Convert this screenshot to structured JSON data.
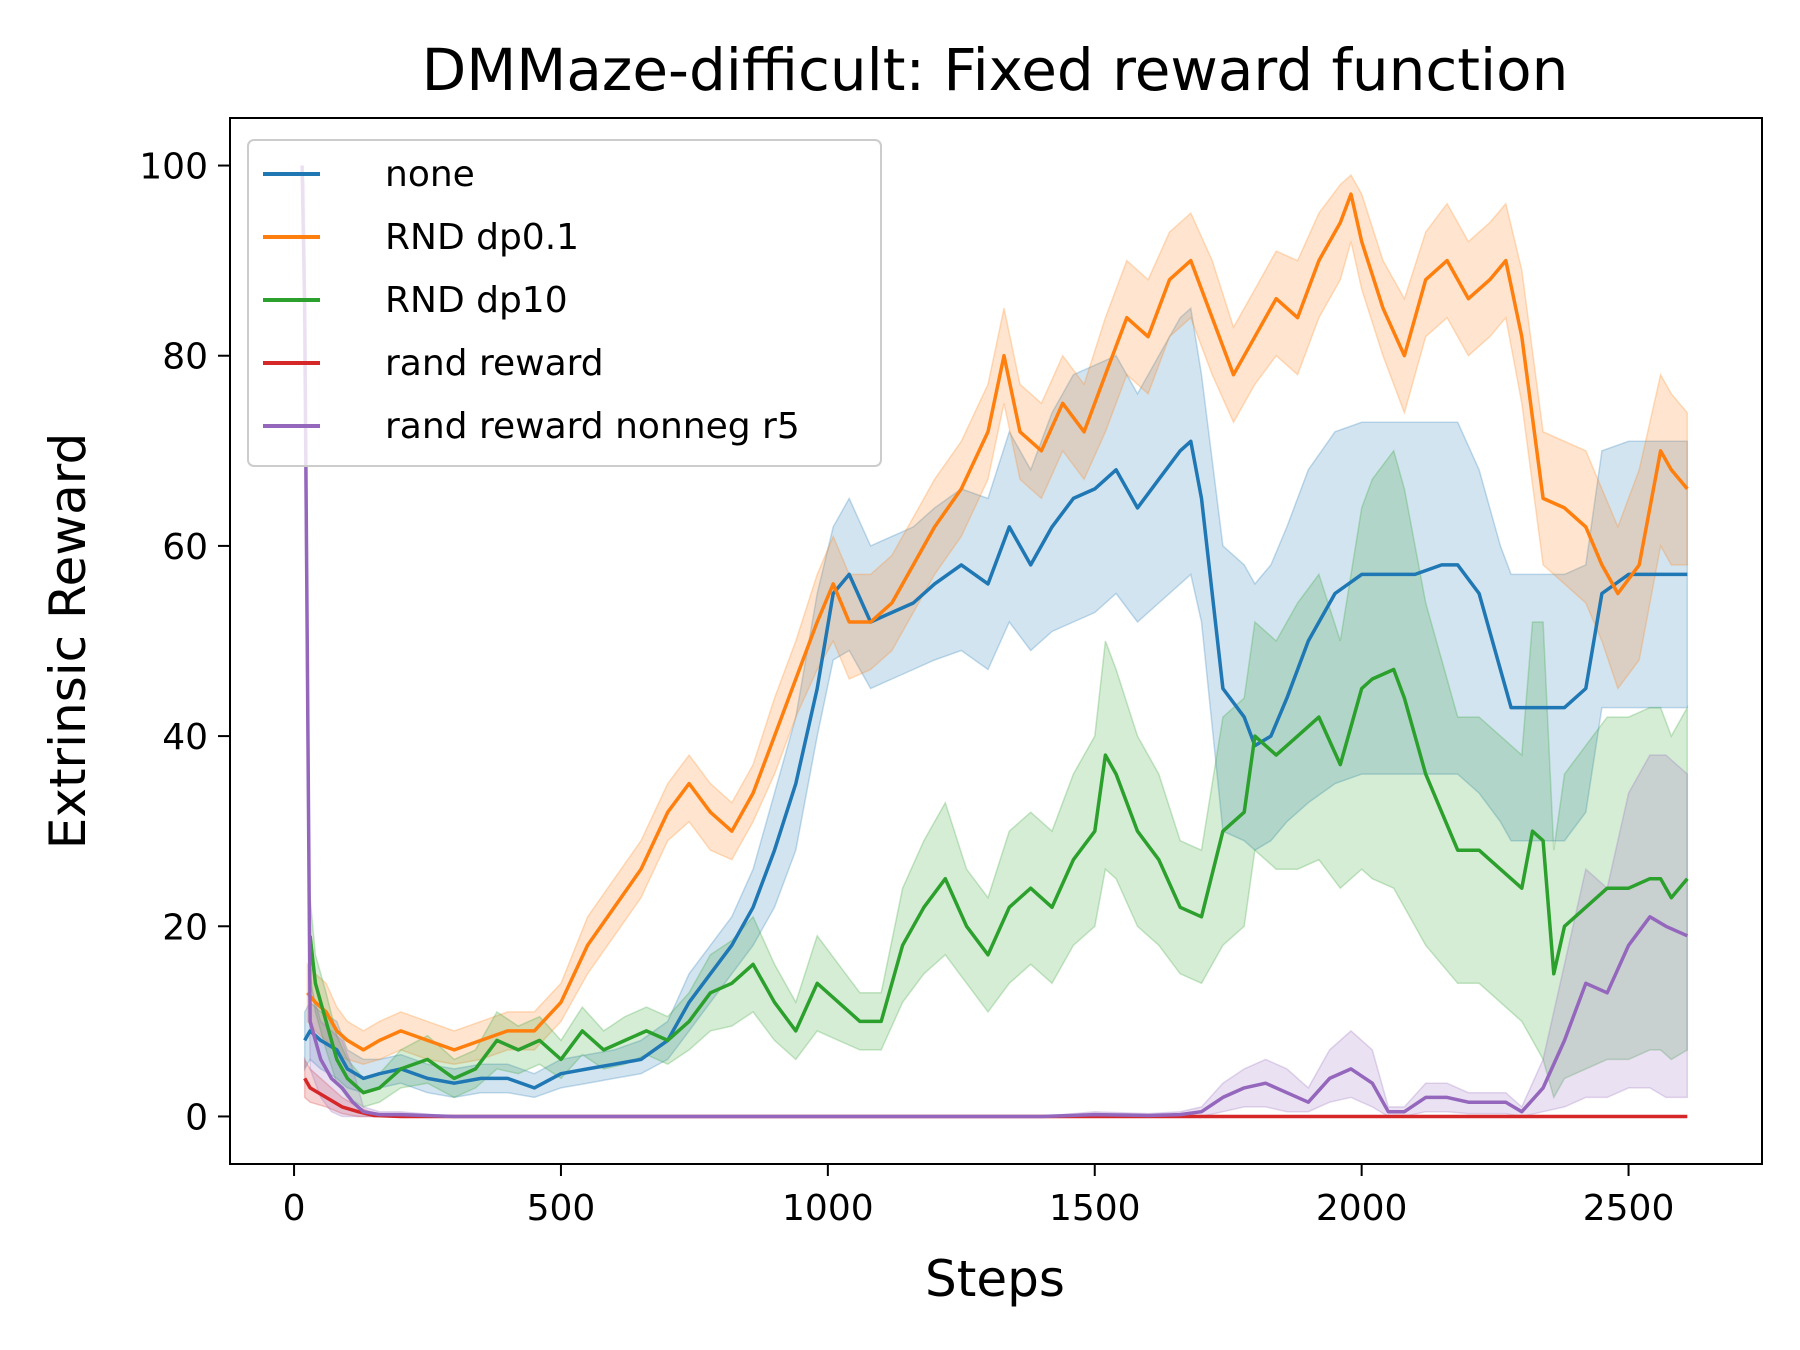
{
  "chart_data": {
    "type": "line",
    "title": "DMMaze-difficult: Fixed reward function",
    "xlabel": "Steps",
    "ylabel": "Extrinsic Reward",
    "xlim": [
      -120,
      2750
    ],
    "ylim": [
      -5,
      105
    ],
    "xticks": [
      0,
      500,
      1000,
      1500,
      2000,
      2500
    ],
    "yticks": [
      0,
      20,
      40,
      60,
      80,
      100
    ],
    "grid": false,
    "legend_position": "top-left",
    "series": [
      {
        "name": "none",
        "color": "#1f77b4",
        "x": [
          20,
          30,
          50,
          80,
          100,
          130,
          160,
          200,
          250,
          300,
          350,
          400,
          450,
          500,
          550,
          600,
          650,
          700,
          740,
          780,
          820,
          860,
          900,
          940,
          980,
          1010,
          1040,
          1080,
          1120,
          1160,
          1200,
          1250,
          1300,
          1340,
          1380,
          1420,
          1460,
          1500,
          1540,
          1580,
          1620,
          1660,
          1680,
          1700,
          1740,
          1780,
          1800,
          1830,
          1860,
          1900,
          1950,
          2000,
          2050,
          2100,
          2150,
          2180,
          2220,
          2260,
          2280,
          2300,
          2350,
          2380,
          2420,
          2450,
          2500,
          2550,
          2610
        ],
        "y": [
          8,
          9,
          8,
          7,
          5,
          4,
          4.5,
          5,
          4,
          3.5,
          4,
          4,
          3,
          4.5,
          5,
          5.5,
          6,
          8,
          12,
          15,
          18,
          22,
          28,
          35,
          45,
          55,
          57,
          52,
          53,
          54,
          56,
          58,
          56,
          62,
          58,
          62,
          65,
          66,
          68,
          64,
          67,
          70,
          71,
          65,
          45,
          42,
          39,
          40,
          44,
          50,
          55,
          57,
          57,
          57,
          58,
          58,
          55,
          47,
          43,
          43,
          43,
          43,
          45,
          55,
          57,
          57,
          57
        ],
        "band_low": [
          5,
          6,
          5,
          4,
          3,
          2.5,
          3,
          3.5,
          2.5,
          2,
          2.5,
          2.5,
          2,
          3,
          3.5,
          4,
          4.5,
          6,
          9,
          12,
          15,
          18,
          22,
          28,
          40,
          48,
          49,
          45,
          46,
          47,
          48,
          49,
          47,
          52,
          49,
          51,
          52,
          53,
          55,
          52,
          54,
          56,
          57,
          52,
          30,
          29,
          28,
          29,
          31,
          33,
          35,
          36,
          36,
          36,
          36,
          36,
          34,
          31,
          29,
          29,
          29,
          29,
          32,
          43,
          43,
          43,
          43
        ],
        "band_high": [
          11,
          12,
          11,
          10,
          7,
          6,
          6,
          6.5,
          5.5,
          5,
          5.5,
          5.5,
          4.5,
          6,
          6.5,
          7,
          8,
          10,
          15,
          18,
          21,
          26,
          34,
          42,
          55,
          62,
          65,
          60,
          61,
          62,
          64,
          66,
          65,
          72,
          68,
          74,
          78,
          79,
          80,
          76,
          80,
          84,
          85,
          78,
          60,
          58,
          56,
          58,
          62,
          68,
          72,
          73,
          73,
          73,
          73,
          73,
          68,
          60,
          57,
          57,
          57,
          57,
          58,
          70,
          71,
          71,
          71
        ]
      },
      {
        "name": "RND dp0.1",
        "color": "#ff7f0e",
        "x": [
          25,
          40,
          60,
          80,
          100,
          130,
          160,
          200,
          250,
          300,
          350,
          400,
          450,
          500,
          550,
          600,
          650,
          700,
          740,
          780,
          820,
          860,
          900,
          940,
          980,
          1010,
          1040,
          1080,
          1120,
          1160,
          1200,
          1250,
          1300,
          1330,
          1360,
          1400,
          1440,
          1480,
          1520,
          1560,
          1600,
          1640,
          1680,
          1720,
          1760,
          1800,
          1840,
          1880,
          1920,
          1960,
          1980,
          2000,
          2040,
          2080,
          2120,
          2160,
          2200,
          2240,
          2270,
          2300,
          2340,
          2380,
          2420,
          2450,
          2480,
          2520,
          2560,
          2580,
          2610
        ],
        "y": [
          13,
          12,
          11,
          9,
          8,
          7,
          8,
          9,
          8,
          7,
          8,
          9,
          9,
          12,
          18,
          22,
          26,
          32,
          35,
          32,
          30,
          34,
          40,
          46,
          52,
          56,
          52,
          52,
          54,
          58,
          62,
          66,
          72,
          80,
          72,
          70,
          75,
          72,
          78,
          84,
          82,
          88,
          90,
          84,
          78,
          82,
          86,
          84,
          90,
          94,
          97,
          92,
          85,
          80,
          88,
          90,
          86,
          88,
          90,
          82,
          65,
          64,
          62,
          58,
          55,
          58,
          70,
          68,
          66
        ],
        "band_low": [
          10,
          9,
          8,
          6.5,
          6,
          5.5,
          6,
          7,
          6,
          5.5,
          6,
          7,
          7,
          10,
          15,
          19,
          23,
          29,
          31,
          28,
          27,
          31,
          36,
          42,
          47,
          50,
          46,
          47,
          49,
          53,
          57,
          61,
          67,
          75,
          67,
          65,
          70,
          67,
          72,
          78,
          76,
          82,
          84,
          78,
          73,
          77,
          80,
          78,
          84,
          88,
          92,
          87,
          80,
          74,
          82,
          84,
          80,
          82,
          84,
          75,
          58,
          56,
          54,
          50,
          45,
          48,
          60,
          58,
          58
        ],
        "band_high": [
          16,
          15,
          14,
          11.5,
          10,
          9,
          10,
          11,
          10,
          9,
          10,
          11,
          11,
          14,
          21,
          25,
          29,
          35,
          38,
          35,
          33,
          37,
          44,
          50,
          57,
          61,
          57,
          57,
          59,
          63,
          67,
          71,
          77,
          85,
          77,
          75,
          80,
          77,
          84,
          90,
          88,
          93,
          95,
          90,
          83,
          87,
          91,
          90,
          95,
          98,
          99,
          97,
          90,
          86,
          93,
          96,
          92,
          94,
          96,
          89,
          72,
          71,
          70,
          66,
          62,
          68,
          78,
          76,
          74
        ]
      },
      {
        "name": "RND dp10",
        "color": "#2ca02c",
        "x": [
          30,
          40,
          60,
          80,
          100,
          130,
          160,
          200,
          250,
          300,
          340,
          380,
          420,
          460,
          500,
          540,
          580,
          620,
          660,
          700,
          740,
          780,
          820,
          860,
          900,
          940,
          980,
          1020,
          1060,
          1100,
          1140,
          1180,
          1220,
          1260,
          1300,
          1340,
          1380,
          1420,
          1460,
          1500,
          1520,
          1540,
          1580,
          1620,
          1660,
          1700,
          1740,
          1780,
          1800,
          1840,
          1880,
          1920,
          1960,
          2000,
          2020,
          2060,
          2080,
          2120,
          2150,
          2180,
          2220,
          2260,
          2300,
          2320,
          2340,
          2360,
          2380,
          2420,
          2460,
          2500,
          2540,
          2560,
          2580,
          2610
        ],
        "y": [
          19,
          14,
          10,
          6,
          4,
          2.5,
          3,
          5,
          6,
          4,
          5,
          8,
          7,
          8,
          6,
          9,
          7,
          8,
          9,
          8,
          10,
          13,
          14,
          16,
          12,
          9,
          14,
          12,
          10,
          10,
          18,
          22,
          25,
          20,
          17,
          22,
          24,
          22,
          27,
          30,
          38,
          36,
          30,
          27,
          22,
          21,
          30,
          32,
          40,
          38,
          40,
          42,
          37,
          45,
          46,
          47,
          44,
          36,
          32,
          28,
          28,
          26,
          24,
          30,
          29,
          15,
          20,
          22,
          24,
          24,
          25,
          25,
          23,
          25
        ],
        "band_low": [
          15,
          11,
          7,
          3.5,
          2,
          1,
          1.5,
          3,
          3.5,
          2,
          3,
          5,
          4.5,
          5.5,
          4,
          6.5,
          5,
          5.5,
          6.5,
          5.5,
          7,
          9,
          9.5,
          11,
          8,
          6,
          9,
          8,
          7,
          7,
          12,
          15,
          17,
          14,
          11,
          14,
          16,
          14,
          18,
          20,
          26,
          25,
          20,
          18,
          15,
          14,
          18,
          20,
          28,
          26,
          26,
          27,
          24,
          26,
          25,
          24,
          22,
          18,
          16,
          14,
          14,
          12,
          10,
          8,
          6,
          2,
          4,
          5,
          6,
          6,
          7,
          7,
          6,
          7
        ],
        "band_high": [
          23,
          17,
          13,
          8.5,
          6,
          4,
          4.5,
          7,
          8.5,
          6,
          7,
          11,
          9.5,
          10.5,
          8,
          11.5,
          9,
          10.5,
          11.5,
          10.5,
          13,
          17,
          18.5,
          21,
          16,
          12,
          19,
          16,
          13,
          13,
          24,
          29,
          33,
          26,
          23,
          30,
          32,
          30,
          36,
          40,
          50,
          47,
          40,
          36,
          29,
          28,
          42,
          44,
          52,
          50,
          54,
          57,
          50,
          64,
          67,
          70,
          66,
          54,
          48,
          42,
          42,
          40,
          38,
          52,
          52,
          28,
          36,
          39,
          42,
          42,
          43,
          43,
          40,
          43
        ]
      },
      {
        "name": "rand reward",
        "color": "#d62728",
        "x": [
          20,
          30,
          60,
          90,
          120,
          150,
          200,
          300,
          500,
          1000,
          1500,
          2000,
          2500,
          2610
        ],
        "y": [
          4,
          3,
          2,
          1,
          0.5,
          0.1,
          0,
          0,
          0,
          0,
          0,
          0,
          0,
          0
        ],
        "band_low": [
          2,
          1.5,
          1,
          0.3,
          0,
          0,
          0,
          0,
          0,
          0,
          0,
          0,
          0,
          0
        ],
        "band_high": [
          6,
          5,
          3.5,
          2,
          1,
          0.3,
          0,
          0,
          0,
          0,
          0,
          0,
          0,
          0
        ]
      },
      {
        "name": "rand reward nonneg r5",
        "color": "#9467bd",
        "x": [
          15,
          20,
          30,
          50,
          70,
          90,
          110,
          130,
          160,
          200,
          300,
          500,
          1000,
          1400,
          1500,
          1600,
          1660,
          1700,
          1740,
          1780,
          1820,
          1860,
          1900,
          1940,
          1980,
          2020,
          2050,
          2080,
          2120,
          2160,
          2200,
          2240,
          2270,
          2300,
          2340,
          2380,
          2420,
          2460,
          2500,
          2540,
          2570,
          2610
        ],
        "y": [
          100,
          85,
          10,
          6,
          4,
          3,
          1.5,
          0.5,
          0.2,
          0.2,
          0,
          0,
          0,
          0,
          0.2,
          0.1,
          0.2,
          0.5,
          2,
          3,
          3.5,
          2.5,
          1.5,
          4,
          5,
          3.5,
          0.5,
          0.5,
          2,
          2,
          1.5,
          1.5,
          1.5,
          0.5,
          3,
          8,
          14,
          13,
          18,
          21,
          20,
          19
        ],
        "band_low": [
          99,
          70,
          5,
          2,
          0.5,
          0,
          0,
          0,
          0,
          0,
          0,
          0,
          0,
          0,
          0,
          0,
          0,
          0,
          0.5,
          1,
          1,
          0.5,
          0.5,
          1.5,
          2,
          1,
          0,
          0,
          0.5,
          0.5,
          0.3,
          0.3,
          0.3,
          0,
          0.5,
          1,
          2,
          2,
          3,
          3,
          2,
          2
        ],
        "band_high": [
          100,
          98,
          14,
          10,
          9,
          8,
          5,
          1,
          0.5,
          0.5,
          0,
          0,
          0,
          0,
          0.5,
          0.3,
          0.5,
          1,
          3.5,
          5,
          6,
          5,
          3,
          7,
          9,
          7,
          1,
          1,
          3.5,
          3.5,
          2.5,
          2.5,
          2.5,
          1,
          6,
          16,
          26,
          24,
          34,
          38,
          38,
          36
        ]
      }
    ]
  }
}
